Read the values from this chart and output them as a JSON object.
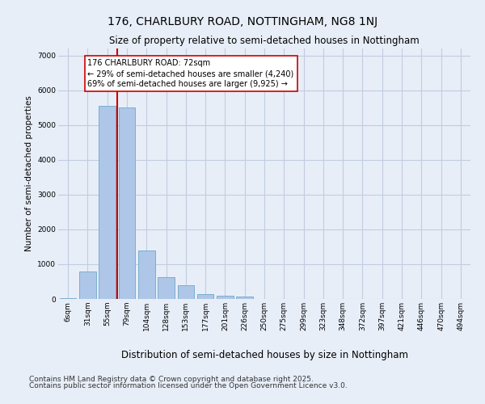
{
  "title": "176, CHARLBURY ROAD, NOTTINGHAM, NG8 1NJ",
  "subtitle": "Size of property relative to semi-detached houses in Nottingham",
  "xlabel": "Distribution of semi-detached houses by size in Nottingham",
  "ylabel": "Number of semi-detached properties",
  "categories": [
    "6sqm",
    "31sqm",
    "55sqm",
    "79sqm",
    "104sqm",
    "128sqm",
    "153sqm",
    "177sqm",
    "201sqm",
    "226sqm",
    "250sqm",
    "275sqm",
    "299sqm",
    "323sqm",
    "348sqm",
    "372sqm",
    "397sqm",
    "421sqm",
    "446sqm",
    "470sqm",
    "494sqm"
  ],
  "values": [
    20,
    780,
    5550,
    5500,
    1400,
    620,
    390,
    130,
    90,
    70,
    0,
    0,
    0,
    0,
    0,
    0,
    0,
    0,
    0,
    0,
    0
  ],
  "bar_color": "#aec6e8",
  "bar_edge_color": "#7aaed0",
  "vline_x_idx": 3,
  "vline_color": "#cc0000",
  "annotation_text": "176 CHARLBURY ROAD: 72sqm\n← 29% of semi-detached houses are smaller (4,240)\n69% of semi-detached houses are larger (9,925) →",
  "ylim": [
    0,
    7200
  ],
  "yticks": [
    0,
    1000,
    2000,
    3000,
    4000,
    5000,
    6000,
    7000
  ],
  "footer_line1": "Contains HM Land Registry data © Crown copyright and database right 2025.",
  "footer_line2": "Contains public sector information licensed under the Open Government Licence v3.0.",
  "bg_color": "#e8eef8",
  "plot_bg_color": "#e8eef8",
  "grid_color": "#c0cce0",
  "title_fontsize": 10,
  "subtitle_fontsize": 8.5,
  "xlabel_fontsize": 8.5,
  "ylabel_fontsize": 7.5,
  "tick_fontsize": 6.5,
  "annotation_fontsize": 7,
  "footer_fontsize": 6.5
}
